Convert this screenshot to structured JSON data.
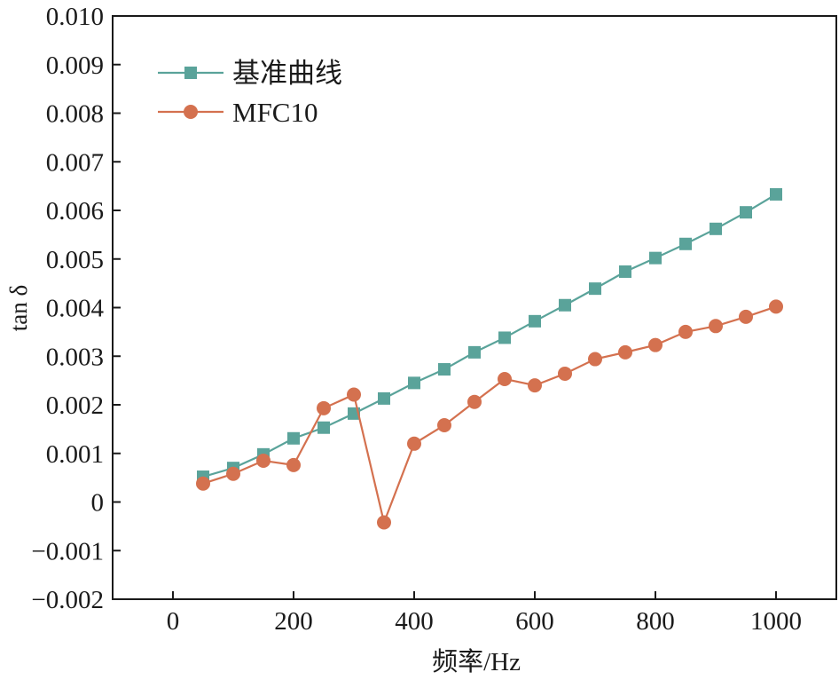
{
  "chart_data": {
    "type": "line",
    "title": "",
    "xlabel": "频率/Hz",
    "ylabel": "tan δ",
    "xlim": [
      -100,
      1100
    ],
    "ylim": [
      -0.002,
      0.01
    ],
    "x_ticks": [
      0,
      200,
      400,
      600,
      800,
      1000
    ],
    "x_tick_labels": [
      "0",
      "200",
      "400",
      "600",
      "800",
      "1000"
    ],
    "y_ticks": [
      -0.002,
      -0.001,
      0,
      0.001,
      0.002,
      0.003,
      0.004,
      0.005,
      0.006,
      0.007,
      0.008,
      0.009,
      0.01
    ],
    "y_tick_labels": [
      "−0.002",
      "−0.001",
      "0",
      "0.001",
      "0.002",
      "0.003",
      "0.004",
      "0.005",
      "0.006",
      "0.007",
      "0.008",
      "0.009",
      "0.010"
    ],
    "grid": false,
    "legend_position": "top-left",
    "x": [
      50,
      100,
      150,
      200,
      250,
      300,
      350,
      400,
      450,
      500,
      550,
      600,
      650,
      700,
      750,
      800,
      850,
      900,
      950,
      1000
    ],
    "series": [
      {
        "name": "基准曲线",
        "marker": "square",
        "color": "#5aa39a",
        "values": [
          0.00052,
          0.0007,
          0.00098,
          0.00131,
          0.00153,
          0.00182,
          0.00213,
          0.00245,
          0.00273,
          0.00308,
          0.00338,
          0.00372,
          0.00405,
          0.00439,
          0.00474,
          0.00502,
          0.00531,
          0.00562,
          0.00596,
          0.00633
        ]
      },
      {
        "name": "MFC10",
        "marker": "circle",
        "color": "#d4714f",
        "values": [
          0.00038,
          0.00058,
          0.00085,
          0.00076,
          0.00193,
          0.00221,
          -0.00042,
          0.0012,
          0.00158,
          0.00206,
          0.00253,
          0.0024,
          0.00264,
          0.00294,
          0.00308,
          0.00323,
          0.0035,
          0.00362,
          0.00381,
          0.00402
        ]
      }
    ]
  }
}
